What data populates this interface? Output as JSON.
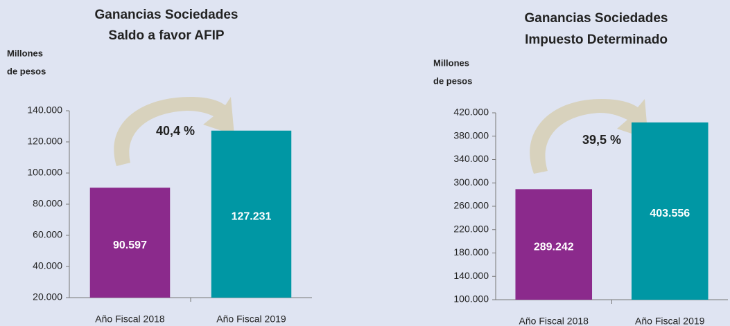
{
  "chart_data": [
    {
      "type": "bar",
      "title": "Ganancias Sociedades",
      "subtitle": "Saldo a favor AFIP",
      "y_label": [
        "Millones",
        "de pesos"
      ],
      "categories": [
        "Año Fiscal 2018",
        "Año Fiscal 2019"
      ],
      "values": [
        90597,
        127231
      ],
      "value_labels": [
        "90.597",
        "127.231"
      ],
      "colors": [
        "#8b2a8c",
        "#0097a4"
      ],
      "annotation": "40,4 %",
      "ylim": [
        20000,
        140000
      ],
      "yticks": [
        {
          "value": 20000,
          "label": "20.000"
        },
        {
          "value": 40000,
          "label": "40.000"
        },
        {
          "value": 60000,
          "label": "60.000"
        },
        {
          "value": 80000,
          "label": "80.000"
        },
        {
          "value": 100000,
          "label": "100.000"
        },
        {
          "value": 120000,
          "label": "120.000"
        },
        {
          "value": 140000,
          "label": "140.000"
        }
      ],
      "grid": false
    },
    {
      "type": "bar",
      "title": "Ganancias Sociedades",
      "subtitle": "Impuesto Determinado",
      "y_label": [
        "Millones",
        "de pesos"
      ],
      "categories": [
        "Año Fiscal 2018",
        "Año Fiscal 2019"
      ],
      "values": [
        289242,
        403556
      ],
      "value_labels": [
        "289.242",
        "403.556"
      ],
      "colors": [
        "#8b2a8c",
        "#0097a4"
      ],
      "annotation": "39,5 %",
      "ylim": [
        100000,
        420000
      ],
      "yticks": [
        {
          "value": 100000,
          "label": "100.000"
        },
        {
          "value": 140000,
          "label": "140.000"
        },
        {
          "value": 180000,
          "label": "180.000"
        },
        {
          "value": 220000,
          "label": "220.000"
        },
        {
          "value": 260000,
          "label": "260.000"
        },
        {
          "value": 300000,
          "label": "300.000"
        },
        {
          "value": 340000,
          "label": "340.000"
        },
        {
          "value": 380000,
          "label": "380.000"
        },
        {
          "value": 420000,
          "label": "420.000"
        }
      ],
      "grid": false
    }
  ]
}
